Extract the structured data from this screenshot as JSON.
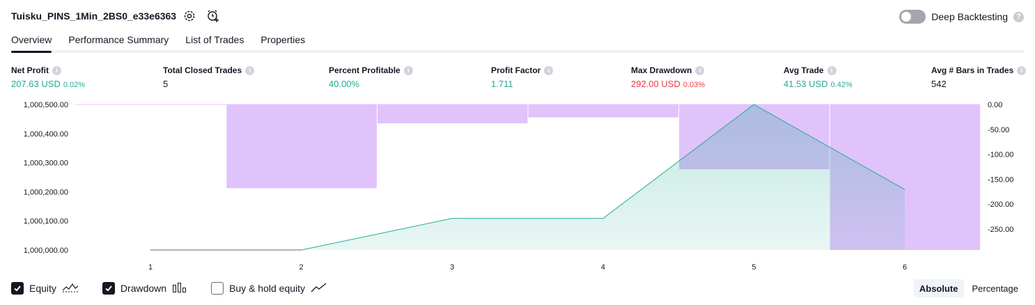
{
  "header": {
    "strategy_name": "Tuisku_PINS_1Min_2BS0_e33e6363",
    "deep_backtesting_label": "Deep Backtesting",
    "deep_backtesting_enabled": false,
    "icons": [
      "settings-icon",
      "alert-add-icon",
      "help-icon"
    ]
  },
  "tabs": [
    {
      "label": "Overview",
      "active": true
    },
    {
      "label": "Performance Summary",
      "active": false
    },
    {
      "label": "List of Trades",
      "active": false
    },
    {
      "label": "Properties",
      "active": false
    }
  ],
  "metrics": [
    {
      "label": "Net Profit",
      "value": "207.63 USD",
      "pct": "0.02%",
      "color": "#22ab94"
    },
    {
      "label": "Total Closed Trades",
      "value": "5",
      "pct": "",
      "color": "#131722"
    },
    {
      "label": "Percent Profitable",
      "value": "40.00%",
      "pct": "",
      "color": "#22ab94"
    },
    {
      "label": "Profit Factor",
      "value": "1.711",
      "pct": "",
      "color": "#22ab94"
    },
    {
      "label": "Max Drawdown",
      "value": "292.00 USD",
      "pct": "0.03%",
      "color": "#f23645"
    },
    {
      "label": "Avg Trade",
      "value": "41.53 USD",
      "pct": "0.42%",
      "color": "#22ab94"
    },
    {
      "label": "Avg # Bars in Trades",
      "value": "542",
      "pct": "",
      "color": "#131722"
    }
  ],
  "chart_data": {
    "type": "area",
    "x": [
      1,
      2,
      3,
      4,
      5,
      6
    ],
    "x_tick_labels": [
      "1",
      "2",
      "3",
      "4",
      "5",
      "6"
    ],
    "series": [
      {
        "axis": "left",
        "type": "area",
        "color": "#22ab94",
        "values": [
          1000000.0,
          1000000.0,
          1000108.5,
          1000108.5,
          1000500.0,
          1000208.0
        ]
      },
      {
        "axis": "right",
        "type": "bar",
        "color": "#e1c3fb",
        "values": [
          0.0,
          -168.0,
          -38.0,
          -26.0,
          -130.0,
          -292.0
        ]
      }
    ],
    "left_axis": {
      "ylim": [
        1000000.0,
        1000500.0
      ],
      "ticks": [
        "1,000,500.00",
        "1,000,400.00",
        "1,000,300.00",
        "1,000,200.00",
        "1,000,100.00",
        "1,000,000.00"
      ]
    },
    "right_axis": {
      "ylim": [
        -292.0,
        0.0
      ],
      "ticks": [
        "0.00",
        "-50.00",
        "-100.00",
        "-150.00",
        "-200.00",
        "-250.00"
      ]
    },
    "grid": false
  },
  "legend": [
    {
      "label": "Equity",
      "checked": true,
      "icon": "equity-line-icon"
    },
    {
      "label": "Drawdown",
      "checked": true,
      "icon": "drawdown-bars-icon"
    },
    {
      "label": "Buy & hold equity",
      "checked": false,
      "icon": "buy-hold-line-icon"
    }
  ],
  "modes": [
    {
      "label": "Absolute",
      "active": true
    },
    {
      "label": "Percentage",
      "active": false
    }
  ]
}
